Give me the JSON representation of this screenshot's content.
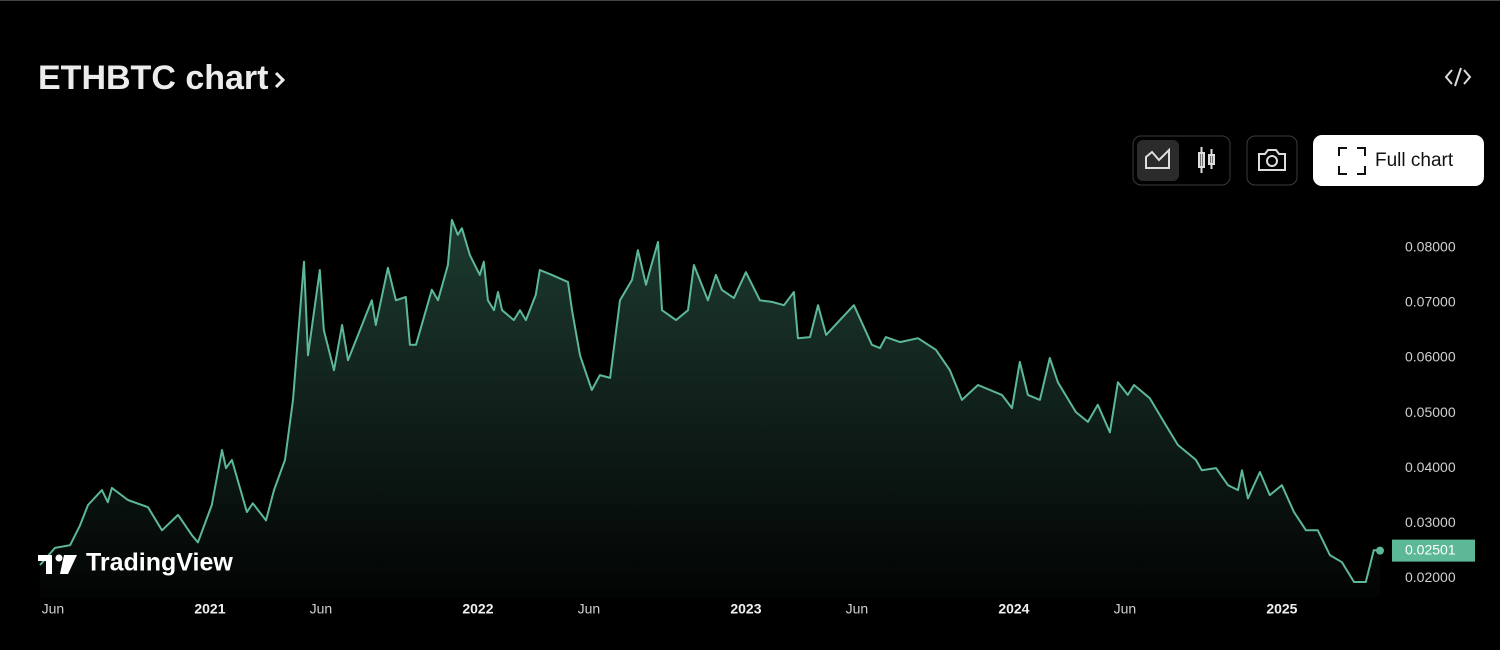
{
  "header": {
    "title": "ETHBTC chart"
  },
  "toolbar": {
    "full_chart": "Full chart"
  },
  "watermark": "TradingView",
  "chart_data": {
    "type": "area",
    "x": [
      2020.366,
      2020.422,
      2020.478,
      2020.515,
      2020.545,
      2020.597,
      2020.619,
      2020.634,
      2020.694,
      2020.769,
      2020.821,
      2020.881,
      2020.933,
      2020.955,
      2021.007,
      2021.045,
      2021.06,
      2021.082,
      2021.138,
      2021.16,
      2021.209,
      2021.239,
      2021.28,
      2021.31,
      2021.351,
      2021.366,
      2021.41,
      2021.425,
      2021.463,
      2021.493,
      2021.515,
      2021.56,
      2021.604,
      2021.619,
      2021.664,
      2021.694,
      2021.731,
      2021.746,
      2021.769,
      2021.828,
      2021.851,
      2021.888,
      2021.903,
      2021.925,
      2021.94,
      2021.97,
      2022.007,
      2022.022,
      2022.037,
      2022.06,
      2022.075,
      2022.09,
      2022.134,
      2022.157,
      2022.179,
      2022.216,
      2022.231,
      2022.276,
      2022.336,
      2022.351,
      2022.381,
      2022.425,
      2022.455,
      2022.493,
      2022.53,
      2022.575,
      2022.597,
      2022.627,
      2022.642,
      2022.672,
      2022.687,
      2022.739,
      2022.784,
      2022.806,
      2022.858,
      2022.888,
      2022.91,
      2022.955,
      2023,
      2023.052,
      2023.097,
      2023.142,
      2023.179,
      2023.194,
      2023.239,
      2023.269,
      2023.299,
      2023.358,
      2023.403,
      2023.47,
      2023.5,
      2023.522,
      2023.575,
      2023.642,
      2023.709,
      2023.761,
      2023.806,
      2023.866,
      2023.955,
      2023.993,
      2024.022,
      2024.052,
      2024.097,
      2024.134,
      2024.164,
      2024.231,
      2024.276,
      2024.313,
      2024.358,
      2024.388,
      2024.425,
      2024.448,
      2024.507,
      2024.567,
      2024.612,
      2024.679,
      2024.701,
      2024.754,
      2024.799,
      2024.836,
      2024.851,
      2024.873,
      2024.918,
      2024.955,
      2025,
      2025.045,
      2025.09,
      2025.134,
      2025.179,
      2025.224,
      2025.269,
      2025.313,
      2025.343,
      2025.366
    ],
    "series": [
      {
        "color": "#5cb896",
        "values": [
          0.0224,
          0.0255,
          0.026,
          0.0296,
          0.0333,
          0.036,
          0.0338,
          0.0364,
          0.0342,
          0.0329,
          0.0287,
          0.0315,
          0.0278,
          0.0265,
          0.0333,
          0.0433,
          0.04,
          0.0415,
          0.032,
          0.0336,
          0.0305,
          0.036,
          0.0415,
          0.0524,
          0.0775,
          0.0605,
          0.076,
          0.0651,
          0.0578,
          0.066,
          0.0596,
          0.0651,
          0.0705,
          0.066,
          0.0764,
          0.0705,
          0.0711,
          0.0624,
          0.0624,
          0.0724,
          0.0705,
          0.0769,
          0.0851,
          0.0824,
          0.0836,
          0.0787,
          0.0751,
          0.0775,
          0.0705,
          0.0687,
          0.072,
          0.0687,
          0.0669,
          0.0687,
          0.0669,
          0.0715,
          0.076,
          0.0751,
          0.0738,
          0.0687,
          0.0605,
          0.0542,
          0.0569,
          0.0564,
          0.0705,
          0.0742,
          0.0796,
          0.0733,
          0.076,
          0.0811,
          0.0687,
          0.0669,
          0.0687,
          0.0769,
          0.0705,
          0.0751,
          0.0724,
          0.0709,
          0.0756,
          0.0705,
          0.0702,
          0.0696,
          0.072,
          0.0636,
          0.0638,
          0.0696,
          0.0642,
          0.0673,
          0.0696,
          0.0624,
          0.0618,
          0.0638,
          0.0629,
          0.0636,
          0.0615,
          0.0578,
          0.0524,
          0.0551,
          0.0533,
          0.0509,
          0.0593,
          0.0533,
          0.0524,
          0.06,
          0.0556,
          0.0502,
          0.0484,
          0.0515,
          0.0465,
          0.0556,
          0.0533,
          0.0551,
          0.0527,
          0.0478,
          0.0442,
          0.0415,
          0.0396,
          0.04,
          0.0369,
          0.036,
          0.0396,
          0.0345,
          0.0393,
          0.0351,
          0.0369,
          0.032,
          0.0287,
          0.0287,
          0.0242,
          0.0229,
          0.0193,
          0.0193,
          0.0251,
          0.02501
        ]
      }
    ],
    "xlim": [
      2020.336,
      2025.422
    ],
    "xticks": [
      {
        "value": 2020.414,
        "label": "Jun"
      },
      2021,
      {
        "value": 2021.414,
        "label": "Jun"
      },
      2022,
      {
        "value": 2022.414,
        "label": "Jun"
      },
      2023,
      {
        "value": 2023.414,
        "label": "Jun"
      },
      2024,
      {
        "value": 2024.414,
        "label": "Jun"
      },
      2025
    ],
    "ylim": [
      0.0164,
      0.0869
    ],
    "yticks": [
      {
        "value": 0.02,
        "label": "0.02000"
      },
      {
        "value": 0.03,
        "label": "0.03000"
      },
      {
        "value": 0.04,
        "label": "0.04000"
      },
      {
        "value": 0.05,
        "label": "0.05000"
      },
      {
        "value": 0.06,
        "label": "0.06000"
      },
      {
        "value": 0.07,
        "label": "0.07000"
      },
      {
        "value": 0.08,
        "label": "0.08000"
      }
    ],
    "grid": false
  }
}
